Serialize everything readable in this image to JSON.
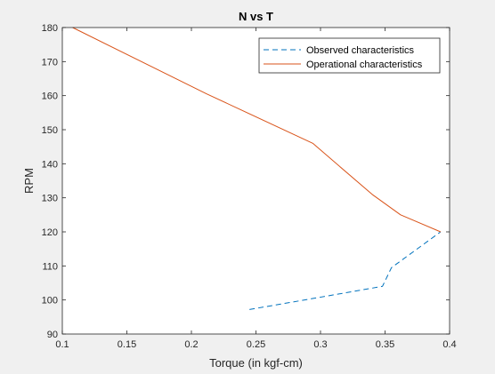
{
  "chart_data": {
    "type": "line",
    "title": "N vs T",
    "xlabel": "Torque (in kgf-cm)",
    "ylabel": "RPM",
    "xlim": [
      0.1,
      0.4
    ],
    "ylim": [
      90,
      180
    ],
    "xticks": [
      0.1,
      0.15,
      0.2,
      0.25,
      0.3,
      0.35,
      0.4
    ],
    "xtick_labels": [
      "0.1",
      "0.15",
      "0.2",
      "0.25",
      "0.3",
      "0.35",
      "0.4"
    ],
    "yticks": [
      90,
      100,
      110,
      120,
      130,
      140,
      150,
      160,
      170,
      180
    ],
    "ytick_labels": [
      "90",
      "100",
      "110",
      "120",
      "130",
      "140",
      "150",
      "160",
      "170",
      "180"
    ],
    "grid": false,
    "legend_position": "top-right",
    "series": [
      {
        "name": "Observed characteristics",
        "style": "dashed",
        "color": "#0072BD",
        "x": [
          0.245,
          0.295,
          0.348,
          0.355,
          0.393
        ],
        "y": [
          97.2,
          100.5,
          104.0,
          109.5,
          120.0
        ]
      },
      {
        "name": "Operational characteristics",
        "style": "solid",
        "color": "#D95319",
        "x": [
          0.108,
          0.212,
          0.294,
          0.34,
          0.362,
          0.393
        ],
        "y": [
          180.0,
          160.5,
          146.0,
          131.0,
          125.0,
          120.0
        ]
      }
    ]
  }
}
